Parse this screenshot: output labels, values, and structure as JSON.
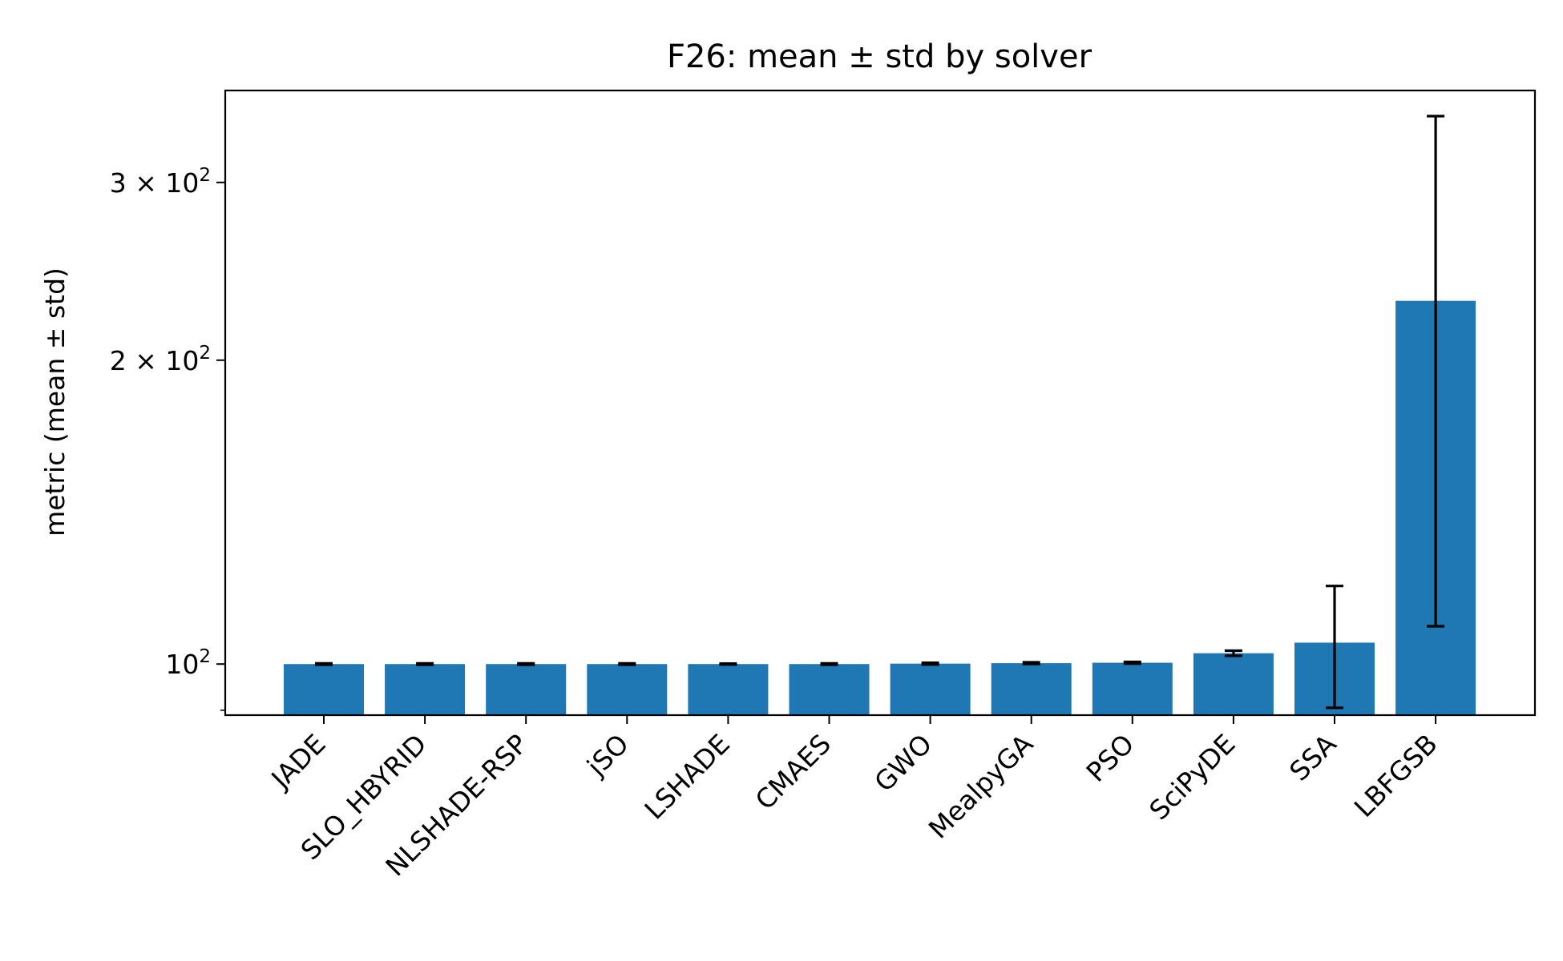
{
  "chart_data": {
    "type": "bar",
    "title": "F26: mean ± std by solver",
    "xlabel": "",
    "ylabel": "metric (mean ± std)",
    "yscale": "log",
    "ylim": [
      89,
      370
    ],
    "yticks": [
      {
        "value": 100,
        "base": "10",
        "exp": "2"
      },
      {
        "value": 200,
        "base": "2 × 10",
        "exp": "2"
      },
      {
        "value": 300,
        "base": "3 × 10",
        "exp": "2"
      }
    ],
    "minor_yticks": [
      90
    ],
    "grid": false,
    "bar_color": "#1f77b4",
    "categories": [
      "JADE",
      "SLO_HBYRID",
      "NLSHADE-RSP",
      "jSO",
      "LSHADE",
      "CMAES",
      "GWO",
      "MealpyGA",
      "PSO",
      "SciPyDE",
      "SSA",
      "LBFGSB"
    ],
    "values": [
      100.0,
      100.0,
      100.0,
      100.0,
      100.0,
      100.0,
      100.1,
      100.2,
      100.3,
      102.5,
      105.0,
      229.0
    ],
    "errors": [
      0.15,
      0.15,
      0.15,
      0.15,
      0.1,
      0.15,
      0.2,
      0.2,
      0.2,
      0.6,
      14.5,
      120.0
    ]
  }
}
